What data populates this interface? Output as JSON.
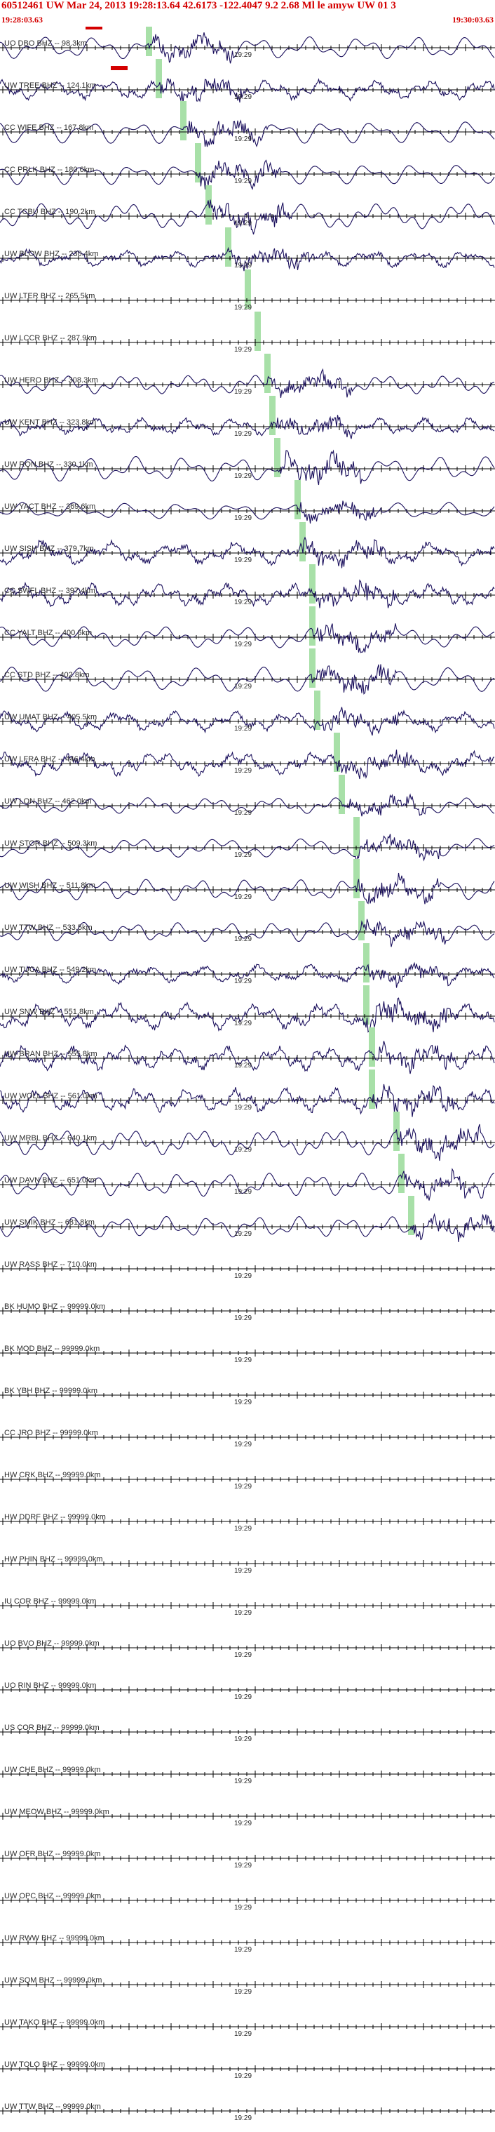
{
  "header": {
    "title": "60512461 UW Mar 24, 2013 19:28:13.64   42.6173 -122.4047  9.2 2.68 Ml le amyw UW 01   3",
    "start_time": "19:28:03.63",
    "end_time": "19:30:03.63"
  },
  "colors": {
    "header_text": "#d40000",
    "trace": "#1a0f5c",
    "axis": "#000000",
    "pick_marker": "#a8e0a8",
    "pick_box": "#d40000"
  },
  "time_label": "19:29",
  "channels": [
    {
      "label": "UO DBO BHZ -- 98.3km",
      "active": true,
      "pick": 0.3
    },
    {
      "label": "UW TREE BHZ -- 124.1km",
      "active": true,
      "pick": 0.32
    },
    {
      "label": "CC WIFE BHZ -- 167.8km",
      "active": true,
      "pick": 0.37
    },
    {
      "label": "CC PRLK BHZ -- 180.6km",
      "active": true,
      "pick": 0.4
    },
    {
      "label": "CC TCBU BHZ -- 190.2km",
      "active": true,
      "pick": 0.42
    },
    {
      "label": "UW BLOW BHZ -- 230.4km",
      "active": true,
      "pick": 0.46
    },
    {
      "label": "UW LTER BHZ -- 265.5km",
      "active": false,
      "pick": 0.5
    },
    {
      "label": "UW LCCR BHZ -- 287.9km",
      "active": false,
      "pick": 0.52
    },
    {
      "label": "UW HERO BHZ -- 308.3km",
      "active": true,
      "pick": 0.54
    },
    {
      "label": "UW KENT BHZ -- 323.8km",
      "active": true,
      "pick": 0.55
    },
    {
      "label": "UW RON BHZ -- 330.1km",
      "active": true,
      "pick": 0.56
    },
    {
      "label": "UW YACT BHZ -- 369.6km",
      "active": true,
      "pick": 0.6
    },
    {
      "label": "UW SISH BHZ -- 379.7km",
      "active": true,
      "pick": 0.61
    },
    {
      "label": "CC SWFL BHZ -- 397.4km",
      "active": true,
      "pick": 0.63
    },
    {
      "label": "CC YALT BHZ -- 400.6km",
      "active": true,
      "pick": 0.63
    },
    {
      "label": "CC STD BHZ -- 402.8km",
      "active": true,
      "pick": 0.63
    },
    {
      "label": "UW UMAT BHZ -- 405.5km",
      "active": true,
      "pick": 0.64
    },
    {
      "label": "UW LFRA BHZ -- 446.4km",
      "active": true,
      "pick": 0.68
    },
    {
      "label": "UW LON BHZ -- 462.0km",
      "active": true,
      "pick": 0.69
    },
    {
      "label": "UW STOR BHZ -- 509.3km",
      "active": true,
      "pick": 0.72
    },
    {
      "label": "UW WISH BHZ -- 511.8km",
      "active": true,
      "pick": 0.72
    },
    {
      "label": "UW TTW BHZ -- 533.5km",
      "active": true,
      "pick": 0.73
    },
    {
      "label": "UW TUCA BHZ -- 549.2km",
      "active": true,
      "pick": 0.74
    },
    {
      "label": "UW SNW BHZ -- 551.8km",
      "active": true,
      "pick": 0.74
    },
    {
      "label": "UW BRAN BHZ -- 555.8km",
      "active": true,
      "pick": 0.75
    },
    {
      "label": "UW WOLL BHZ -- 561.0km",
      "active": true,
      "pick": 0.75
    },
    {
      "label": "UW MRBL BHZ -- 640.1km",
      "active": true,
      "pick": 0.8
    },
    {
      "label": "UW DAVN BHZ -- 651.0km",
      "active": true,
      "pick": 0.81
    },
    {
      "label": "UW SMIK BHZ -- 681.8km",
      "active": true,
      "pick": 0.83
    },
    {
      "label": "UW RASS BHZ -- 710.0km",
      "active": false,
      "pick": null
    },
    {
      "label": "BK HUMO BHZ -- 99999.0km",
      "active": false,
      "pick": null
    },
    {
      "label": "BK MOD BHZ -- 99999.0km",
      "active": false,
      "pick": null
    },
    {
      "label": "BK YBH BHZ -- 99999.0km",
      "active": false,
      "pick": null
    },
    {
      "label": "CC JRO BHZ -- 99999.0km",
      "active": false,
      "pick": null
    },
    {
      "label": "HW CRK BHZ -- 99999.0km",
      "active": false,
      "pick": null
    },
    {
      "label": "HW DDRF BHZ -- 99999.0km",
      "active": false,
      "pick": null
    },
    {
      "label": "HW PHIN BHZ -- 99999.0km",
      "active": false,
      "pick": null
    },
    {
      "label": "IU COR BHZ -- 99999.0km",
      "active": false,
      "pick": null
    },
    {
      "label": "UO BVO BHZ -- 99999.0km",
      "active": false,
      "pick": null
    },
    {
      "label": "UO RIN BHZ -- 99999.0km",
      "active": false,
      "pick": null
    },
    {
      "label": "US COR BHZ -- 99999.0km",
      "active": false,
      "pick": null
    },
    {
      "label": "UW CHE BHZ -- 99999.0km",
      "active": false,
      "pick": null
    },
    {
      "label": "UW MEOW BHZ -- 99999.0km",
      "active": false,
      "pick": null
    },
    {
      "label": "UW OFR BHZ -- 99999.0km",
      "active": false,
      "pick": null
    },
    {
      "label": "UW OPC BHZ -- 99999.0km",
      "active": false,
      "pick": null
    },
    {
      "label": "UW RWW BHZ -- 99999.0km",
      "active": false,
      "pick": null
    },
    {
      "label": "UW SQM BHZ -- 99999.0km",
      "active": false,
      "pick": null
    },
    {
      "label": "UW TAKO BHZ -- 99999.0km",
      "active": false,
      "pick": null
    },
    {
      "label": "UW TOLO BHZ -- 99999.0km",
      "active": false,
      "pick": null
    },
    {
      "label": "UW TTW BHZ -- 99999.0km",
      "active": false,
      "pick": null
    }
  ]
}
